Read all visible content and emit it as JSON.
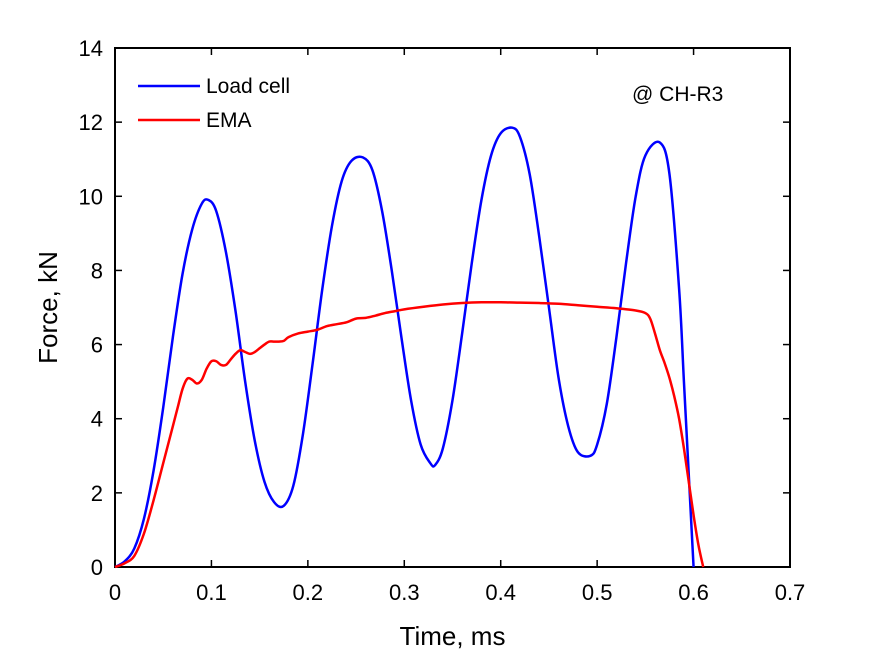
{
  "chart_data": {
    "type": "line",
    "xlabel": "Time, ms",
    "ylabel": "Force, kN",
    "xlim": [
      0,
      0.7
    ],
    "ylim": [
      0,
      14
    ],
    "xticks": [
      0,
      0.1,
      0.2,
      0.3,
      0.4,
      0.5,
      0.6,
      0.7
    ],
    "xtick_labels": [
      "0",
      "0.1",
      "0.2",
      "0.3",
      "0.4",
      "0.5",
      "0.6",
      "0.7"
    ],
    "yticks": [
      0,
      2,
      4,
      6,
      8,
      10,
      12,
      14
    ],
    "ytick_labels": [
      "0",
      "2",
      "4",
      "6",
      "8",
      "10",
      "12",
      "14"
    ],
    "grid": false,
    "legend_position": "top-left",
    "annotation": "@ CH-R3",
    "series": [
      {
        "name": "Load cell",
        "color": "#0000ff",
        "x": [
          0,
          0.01,
          0.02,
          0.03,
          0.04,
          0.05,
          0.06,
          0.07,
          0.08,
          0.09,
          0.097,
          0.105,
          0.115,
          0.125,
          0.135,
          0.145,
          0.155,
          0.165,
          0.175,
          0.185,
          0.195,
          0.205,
          0.215,
          0.225,
          0.235,
          0.245,
          0.257,
          0.267,
          0.277,
          0.287,
          0.297,
          0.307,
          0.317,
          0.327,
          0.332,
          0.34,
          0.35,
          0.36,
          0.37,
          0.38,
          0.39,
          0.4,
          0.412,
          0.42,
          0.43,
          0.44,
          0.45,
          0.46,
          0.47,
          0.48,
          0.493,
          0.5,
          0.51,
          0.52,
          0.53,
          0.54,
          0.55,
          0.565,
          0.575,
          0.585,
          0.59,
          0.595,
          0.598,
          0.6
        ],
        "y": [
          0,
          0.15,
          0.5,
          1.3,
          2.6,
          4.3,
          6.2,
          7.9,
          9.1,
          9.8,
          9.9,
          9.6,
          8.5,
          6.9,
          5.0,
          3.4,
          2.3,
          1.75,
          1.65,
          2.2,
          3.6,
          5.5,
          7.5,
          9.2,
          10.4,
          10.95,
          11.05,
          10.7,
          9.6,
          8.0,
          6.2,
          4.5,
          3.3,
          2.8,
          2.75,
          3.2,
          4.5,
          6.3,
          8.2,
          9.9,
          11.1,
          11.7,
          11.85,
          11.6,
          10.6,
          8.9,
          7.0,
          5.1,
          3.8,
          3.1,
          3.0,
          3.3,
          4.4,
          6.2,
          8.2,
          10.0,
          11.1,
          11.45,
          10.6,
          7.5,
          5.0,
          2.5,
          1.0,
          0
        ]
      },
      {
        "name": "EMA",
        "color": "#ff0000",
        "x": [
          0,
          0.01,
          0.02,
          0.03,
          0.04,
          0.05,
          0.06,
          0.065,
          0.07,
          0.075,
          0.08,
          0.085,
          0.09,
          0.095,
          0.1,
          0.105,
          0.11,
          0.115,
          0.12,
          0.125,
          0.13,
          0.135,
          0.14,
          0.145,
          0.15,
          0.155,
          0.16,
          0.165,
          0.17,
          0.175,
          0.18,
          0.19,
          0.2,
          0.21,
          0.22,
          0.23,
          0.24,
          0.25,
          0.26,
          0.27,
          0.28,
          0.29,
          0.3,
          0.32,
          0.34,
          0.36,
          0.38,
          0.4,
          0.42,
          0.44,
          0.46,
          0.48,
          0.5,
          0.52,
          0.54,
          0.55,
          0.555,
          0.56,
          0.565,
          0.57,
          0.575,
          0.58,
          0.585,
          0.59,
          0.595,
          0.6,
          0.605,
          0.61
        ],
        "y": [
          0,
          0.1,
          0.3,
          0.9,
          1.8,
          2.8,
          3.8,
          4.3,
          4.8,
          5.08,
          5.05,
          4.95,
          5.05,
          5.35,
          5.55,
          5.55,
          5.45,
          5.45,
          5.6,
          5.75,
          5.85,
          5.8,
          5.75,
          5.8,
          5.9,
          6.0,
          6.08,
          6.08,
          6.08,
          6.1,
          6.2,
          6.3,
          6.35,
          6.4,
          6.5,
          6.55,
          6.6,
          6.7,
          6.72,
          6.78,
          6.85,
          6.9,
          6.95,
          7.02,
          7.08,
          7.12,
          7.14,
          7.14,
          7.13,
          7.12,
          7.1,
          7.06,
          7.02,
          6.98,
          6.92,
          6.85,
          6.7,
          6.3,
          5.85,
          5.5,
          5.1,
          4.6,
          4.0,
          3.2,
          2.3,
          1.4,
          0.6,
          0
        ]
      }
    ]
  }
}
